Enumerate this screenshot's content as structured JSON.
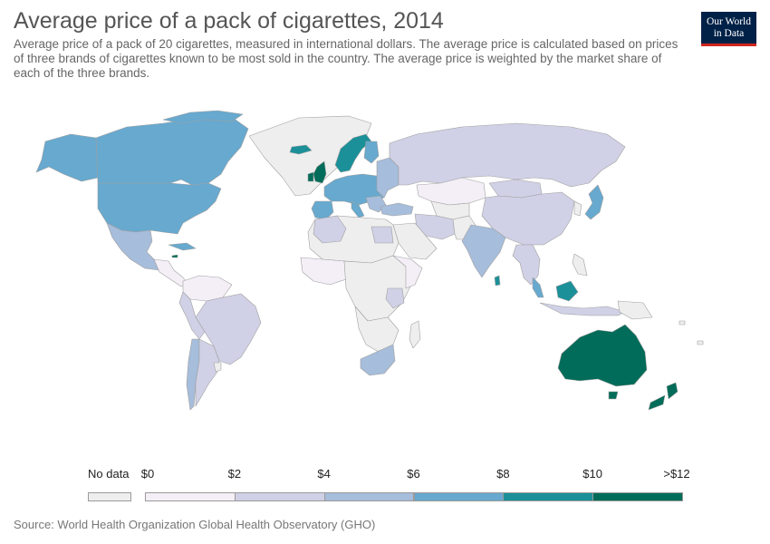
{
  "header": {
    "title": "Average price of a pack of cigarettes, 2014",
    "subtitle": "Average price of a pack of 20 cigarettes, measured in international dollars. The average price is calculated based on prices of three brands of cigarettes known to be most sold in the country. The average price is weighted by the market share of each of the three brands."
  },
  "logo": {
    "line1": "Our World",
    "line2": "in Data"
  },
  "legend": {
    "no_data_label": "No data",
    "no_data_color": "#eeeeee",
    "tick_labels": [
      "$0",
      "$2",
      "$4",
      "$6",
      "$8",
      "$10",
      ">$12"
    ],
    "bins": [
      {
        "from": 0,
        "to": 2,
        "color": "#f4eff7"
      },
      {
        "from": 2,
        "to": 4,
        "color": "#d0d1e6"
      },
      {
        "from": 4,
        "to": 6,
        "color": "#a6bddb"
      },
      {
        "from": 6,
        "to": 8,
        "color": "#67a9cf"
      },
      {
        "from": 8,
        "to": 10,
        "color": "#1c9099"
      },
      {
        "from": 10,
        "to": 12,
        "color": "#016c59"
      }
    ]
  },
  "colors": {
    "no_data": "#eeeeee",
    "border": "#a0a0a0"
  },
  "footer": {
    "source": "Source: World Health Organization Global Health Observatory (GHO)"
  }
}
